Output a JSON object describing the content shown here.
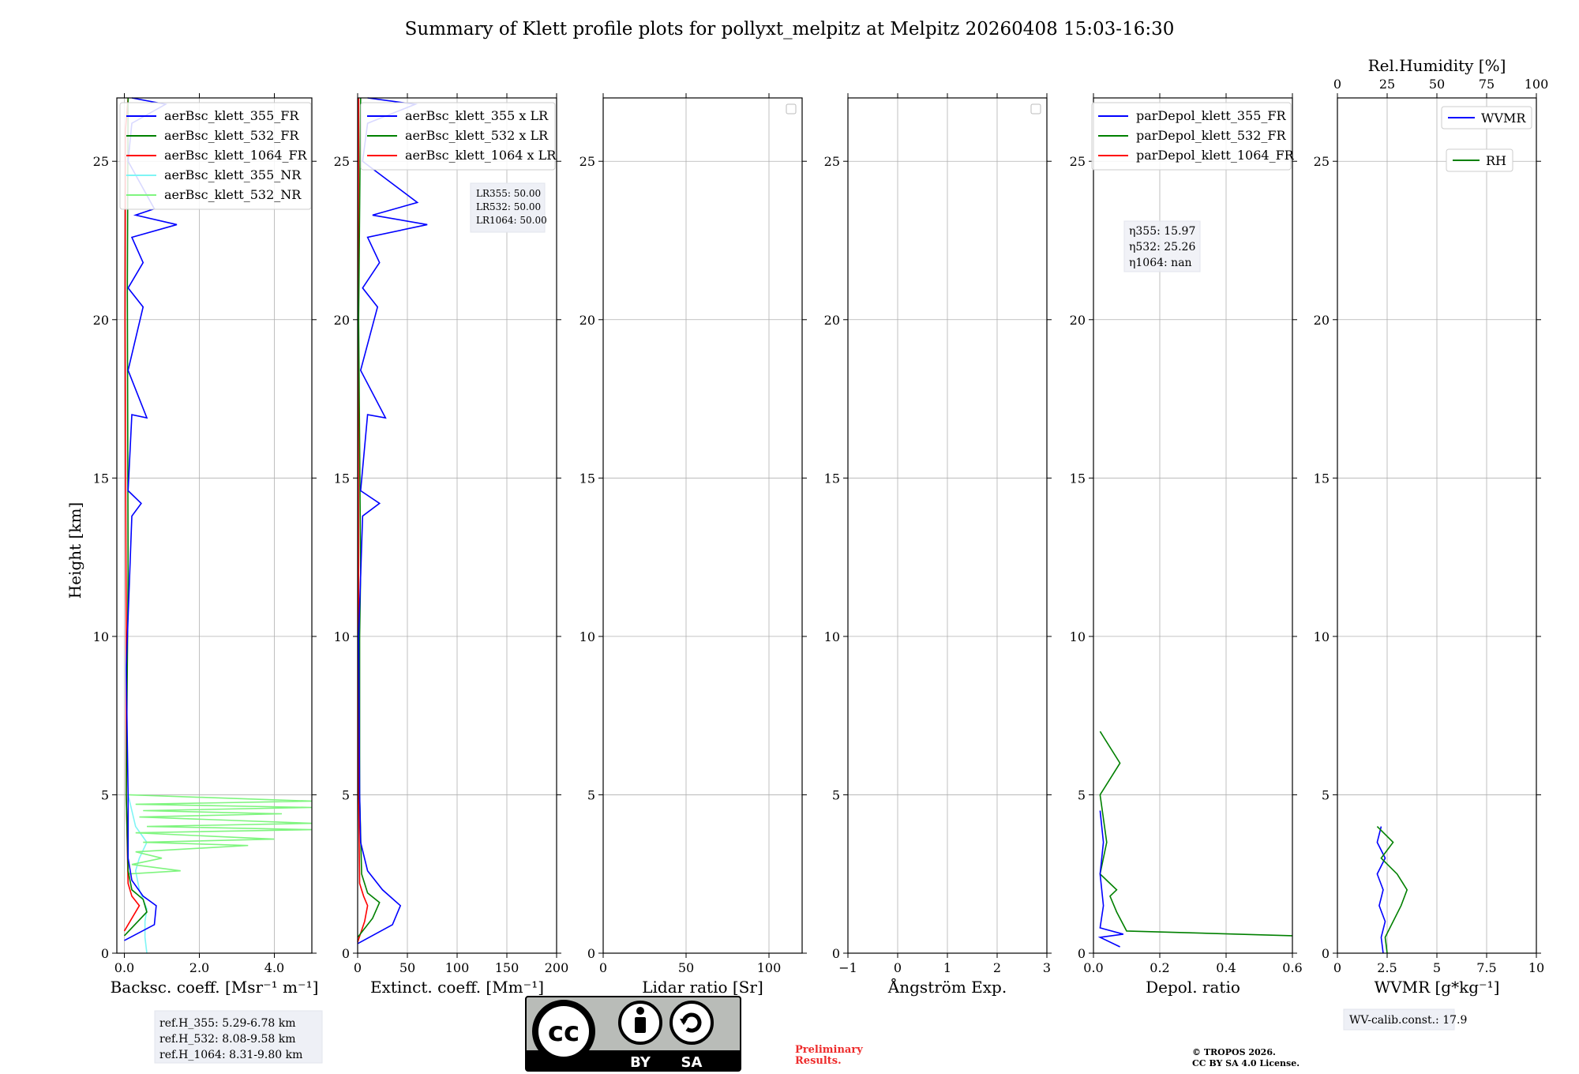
{
  "title": "Summary of Klett profile plots for pollyxt_melpitz at Melpitz 20260408 15:03-16:30",
  "ylabel": "Height [km]",
  "ylim": [
    0,
    27
  ],
  "yticks": [
    0,
    5,
    10,
    15,
    20,
    25
  ],
  "colors": {
    "c355": "#0000ff",
    "c532": "#008000",
    "c1064": "#ff0000",
    "c355nr": "#7ff5f5",
    "c532nr": "#7ff57f"
  },
  "chart_data": [
    {
      "type": "line",
      "id": "bsc",
      "xlabel": "Backsc. coeff. [Msr⁻¹ m⁻¹]",
      "xlim": [
        -0.2,
        5
      ],
      "xticks": [
        0,
        2,
        4
      ],
      "legend": [
        "aerBsc_klett_355_FR",
        "aerBsc_klett_532_FR",
        "aerBsc_klett_1064_FR",
        "aerBsc_klett_355_NR",
        "aerBsc_klett_532_NR"
      ],
      "legend_colors": [
        "c355",
        "c532",
        "c1064",
        "c355nr",
        "c532nr"
      ],
      "series": [
        {
          "name": "aerBsc_klett_355_NR",
          "color": "c355nr",
          "points": [
            [
              0.6,
              0
            ],
            [
              0.55,
              0.5
            ],
            [
              0.55,
              1.0
            ],
            [
              0.6,
              1.4
            ],
            [
              0.4,
              2.0
            ],
            [
              0.3,
              2.6
            ],
            [
              0.4,
              3.0
            ],
            [
              0.6,
              3.5
            ],
            [
              0.3,
              4.0
            ],
            [
              0.2,
              4.5
            ],
            [
              0.1,
              5.0
            ]
          ]
        },
        {
          "name": "aerBsc_klett_532_NR",
          "color": "c532nr",
          "points": [
            [
              0.1,
              2.5
            ],
            [
              1.5,
              2.6
            ],
            [
              0.2,
              2.8
            ],
            [
              1.0,
              3.0
            ],
            [
              0.3,
              3.2
            ],
            [
              3.3,
              3.4
            ],
            [
              0.5,
              3.5
            ],
            [
              4.0,
              3.6
            ],
            [
              0.3,
              3.8
            ],
            [
              5.0,
              3.9
            ],
            [
              0.6,
              4.0
            ],
            [
              5.0,
              4.1
            ],
            [
              0.4,
              4.3
            ],
            [
              4.2,
              4.4
            ],
            [
              0.5,
              4.5
            ],
            [
              5.0,
              4.6
            ],
            [
              0.3,
              4.7
            ],
            [
              5.0,
              4.8
            ],
            [
              0.1,
              5.0
            ]
          ]
        },
        {
          "name": "aerBsc_klett_1064_FR",
          "color": "c1064",
          "points": [
            [
              0.0,
              0.7
            ],
            [
              0.4,
              1.5
            ],
            [
              0.2,
              1.8
            ],
            [
              0.1,
              2.2
            ],
            [
              0.05,
              5
            ],
            [
              0.05,
              10
            ],
            [
              0.02,
              20
            ],
            [
              0.03,
              26
            ],
            [
              0.1,
              27
            ]
          ]
        },
        {
          "name": "aerBsc_klett_532_FR",
          "color": "c532",
          "points": [
            [
              0.0,
              0.55
            ],
            [
              0.6,
              1.3
            ],
            [
              0.5,
              1.7
            ],
            [
              0.2,
              2.0
            ],
            [
              0.1,
              2.6
            ],
            [
              0.05,
              5
            ],
            [
              0.1,
              12
            ],
            [
              0.08,
              21
            ],
            [
              0.1,
              27
            ]
          ]
        },
        {
          "name": "aerBsc_klett_355_FR",
          "color": "c355",
          "points": [
            [
              0.0,
              0.4
            ],
            [
              0.8,
              0.9
            ],
            [
              0.85,
              1.5
            ],
            [
              0.5,
              1.8
            ],
            [
              0.2,
              2.3
            ],
            [
              0.1,
              3.0
            ],
            [
              0.1,
              5.0
            ],
            [
              0.05,
              9
            ],
            [
              0.2,
              13.8
            ],
            [
              0.45,
              14.2
            ],
            [
              0.1,
              14.6
            ],
            [
              0.2,
              17
            ],
            [
              0.6,
              16.9
            ],
            [
              0.1,
              18.4
            ],
            [
              0.5,
              20.4
            ],
            [
              0.1,
              21
            ],
            [
              0.5,
              21.8
            ],
            [
              0.2,
              22.6
            ],
            [
              1.4,
              23.0
            ],
            [
              0.3,
              23.3
            ],
            [
              0.8,
              23.5
            ],
            [
              0.1,
              25
            ],
            [
              0.2,
              26.2
            ],
            [
              1.1,
              26.8
            ],
            [
              0.2,
              27
            ]
          ]
        }
      ],
      "note": [
        "ref.H_355: 5.29-6.78 km",
        "ref.H_532: 8.08-9.58 km",
        "ref.H_1064: 8.31-9.80 km"
      ]
    },
    {
      "type": "line",
      "id": "ext",
      "xlabel": "Extinct. coeff. [Mm⁻¹]",
      "xlim": [
        0,
        200
      ],
      "xticks": [
        0,
        50,
        100,
        150,
        200
      ],
      "legend": [
        "aerBsc_klett_355 x LR",
        "aerBsc_klett_532 x LR",
        "aerBsc_klett_1064 x LR"
      ],
      "legend_colors": [
        "c355",
        "c532",
        "c1064"
      ],
      "series": [
        {
          "name": "aerBsc_klett_1064 x LR",
          "color": "c1064",
          "points": [
            [
              0,
              0.35
            ],
            [
              7,
              1.0
            ],
            [
              10,
              1.5
            ],
            [
              6,
              1.8
            ],
            [
              2,
              2.2
            ],
            [
              1,
              5
            ],
            [
              1,
              10
            ],
            [
              0.5,
              20
            ],
            [
              1,
              27
            ]
          ]
        },
        {
          "name": "aerBsc_klett_532 x LR",
          "color": "c532",
          "points": [
            [
              0,
              0.5
            ],
            [
              15,
              1.1
            ],
            [
              22,
              1.6
            ],
            [
              10,
              1.9
            ],
            [
              4,
              2.5
            ],
            [
              2,
              5
            ],
            [
              2,
              10
            ],
            [
              3,
              12
            ],
            [
              1,
              20
            ],
            [
              3,
              27
            ]
          ]
        },
        {
          "name": "aerBsc_klett_355 x LR",
          "color": "c355",
          "points": [
            [
              0,
              0.3
            ],
            [
              35,
              0.9
            ],
            [
              43,
              1.5
            ],
            [
              25,
              2.0
            ],
            [
              10,
              2.6
            ],
            [
              3,
              3.5
            ],
            [
              2,
              5
            ],
            [
              1,
              10
            ],
            [
              5,
              13.8
            ],
            [
              22,
              14.2
            ],
            [
              3,
              14.6
            ],
            [
              10,
              17
            ],
            [
              28,
              16.9
            ],
            [
              3,
              18.4
            ],
            [
              20,
              20.4
            ],
            [
              5,
              21
            ],
            [
              22,
              21.8
            ],
            [
              10,
              22.6
            ],
            [
              70,
              23.0
            ],
            [
              15,
              23.3
            ],
            [
              60,
              23.7
            ],
            [
              5,
              25
            ],
            [
              10,
              26.2
            ],
            [
              58,
              26.8
            ],
            [
              10,
              27
            ]
          ]
        }
      ],
      "note": [
        "LR355: 50.00",
        "LR532: 50.00",
        "LR1064: 50.00"
      ]
    },
    {
      "type": "line",
      "id": "lr",
      "xlabel": "Lidar ratio [Sr]",
      "xlim": [
        0,
        120
      ],
      "xticks": [
        0,
        50,
        100
      ],
      "legend": [],
      "series": []
    },
    {
      "type": "line",
      "id": "ang",
      "xlabel": "Ångström Exp.",
      "xlim": [
        -1,
        3
      ],
      "xticks": [
        -1,
        0,
        1,
        2,
        3
      ],
      "legend": [],
      "series": []
    },
    {
      "type": "line",
      "id": "depol",
      "xlabel": "Depol. ratio",
      "xlim": [
        0,
        0.6
      ],
      "xticks": [
        0.0,
        0.2,
        0.4,
        0.6
      ],
      "legend": [
        "parDepol_klett_355_FR",
        "parDepol_klett_532_FR",
        "parDepol_klett_1064_FR"
      ],
      "legend_colors": [
        "c355",
        "c532",
        "c1064"
      ],
      "series": [
        {
          "name": "parDepol_klett_532_FR",
          "color": "c532",
          "points": [
            [
              0.6,
              0.55
            ],
            [
              0.1,
              0.7
            ],
            [
              0.07,
              1.3
            ],
            [
              0.05,
              1.8
            ],
            [
              0.07,
              2.0
            ],
            [
              0.04,
              2.3
            ],
            [
              0.02,
              2.5
            ],
            [
              0.04,
              3.5
            ],
            [
              0.02,
              5
            ],
            [
              0.08,
              6
            ],
            [
              0.02,
              7
            ]
          ]
        },
        {
          "name": "parDepol_klett_355_FR",
          "color": "c355",
          "points": [
            [
              0.08,
              0.2
            ],
            [
              0.02,
              0.5
            ],
            [
              0.09,
              0.6
            ],
            [
              0.02,
              0.8
            ],
            [
              0.03,
              1.5
            ],
            [
              0.02,
              2.5
            ],
            [
              0.03,
              3.5
            ],
            [
              0.02,
              4.5
            ]
          ]
        }
      ],
      "note": [
        "η355: 15.97",
        "η532: 25.26",
        "η1064: nan"
      ]
    },
    {
      "type": "line",
      "id": "wv",
      "xlabel": "WVMR [g*kg⁻¹]",
      "xlim": [
        0,
        10
      ],
      "xticks": [
        0.0,
        2.5,
        5.0,
        7.5,
        10.0
      ],
      "top_axis": {
        "label": "Rel.Humidity [%]",
        "lim": [
          0,
          100
        ],
        "ticks": [
          0,
          25,
          50,
          75,
          100
        ]
      },
      "legend": [
        "WVMR",
        "RH"
      ],
      "legend_colors": [
        "c355",
        "c532"
      ],
      "series": [
        {
          "name": "WVMR",
          "color": "c355",
          "points": [
            [
              2.3,
              0
            ],
            [
              2.2,
              0.5
            ],
            [
              2.4,
              1.0
            ],
            [
              2.1,
              1.5
            ],
            [
              2.3,
              2.0
            ],
            [
              2.0,
              2.5
            ],
            [
              2.4,
              3.0
            ],
            [
              2.0,
              3.5
            ],
            [
              2.2,
              4.0
            ]
          ]
        },
        {
          "name": "RH",
          "color": "c532",
          "points": [
            [
              25,
              0
            ],
            [
              24,
              0.5
            ],
            [
              28,
              1.0
            ],
            [
              32,
              1.5
            ],
            [
              35,
              2.0
            ],
            [
              30,
              2.5
            ],
            [
              22,
              3.0
            ],
            [
              28,
              3.5
            ],
            [
              20,
              4.0
            ]
          ]
        }
      ],
      "note": [
        "WV-calib.const.: 17.9"
      ]
    }
  ],
  "license": {
    "cc": "cc",
    "by": "BY",
    "sa": "SA"
  },
  "preliminary": [
    "Preliminary",
    "Results."
  ],
  "copyright": [
    "© TROPOS 2026.",
    "CC BY SA 4.0 License."
  ]
}
